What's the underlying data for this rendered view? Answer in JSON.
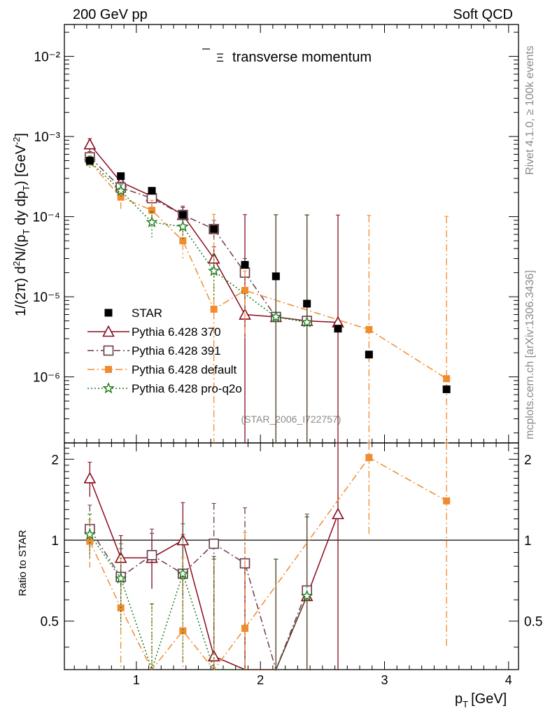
{
  "header": {
    "left": "200 GeV pp",
    "right": "Soft QCD",
    "side_top": "Rivet 4.1.0, ≥ 100k events",
    "side_bottom": "mcplots.cern.ch [arXiv:1306.3436]",
    "watermark": "(STAR_2006_I722757)"
  },
  "chart_data": {
    "type": "scatter",
    "title": "Ξ̄ transverse momentum",
    "title_symbol": "Ξ",
    "title_rest": "transverse momentum",
    "xlabel": "p_T [GeV]",
    "xlabel_main": "p",
    "xlabel_sub": "T",
    "xlabel_unit": "[GeV]",
    "ylabel": "1/(2π) d²N/(p_T dy dp_T) [GeV⁻²]",
    "ylabel_ratio": "Ratio to STAR",
    "xlim": [
      0.42,
      4.08
    ],
    "ylim": [
      1.5e-07,
      0.025
    ],
    "ratio_ylim": [
      0.33,
      2.3
    ],
    "x_ticks": [
      "1",
      "2",
      "3",
      "4"
    ],
    "y_ticks": [
      "10⁻⁶",
      "10⁻⁵",
      "10⁻⁴",
      "10⁻³",
      "10⁻²"
    ],
    "ratio_ticks": [
      "0.5",
      "1",
      "2"
    ],
    "ratio_ticks_right": [
      "0.5",
      "1",
      "2"
    ],
    "legend": [
      "STAR",
      "Pythia 6.428 370",
      "Pythia 6.428 391",
      "Pythia 6.428 default",
      "Pythia 6.428 pro-q2o"
    ],
    "data": {
      "name": "STAR",
      "color": "#000000",
      "x": [
        0.625,
        0.875,
        1.125,
        1.375,
        1.625,
        1.875,
        2.125,
        2.375,
        2.625,
        2.875,
        3.5
      ],
      "y": [
        0.0005,
        0.00032,
        0.00021,
        0.000105,
        7e-05,
        2.5e-05,
        1.8e-05,
        8.2e-06,
        4e-06,
        1.9e-06,
        7e-07
      ]
    },
    "series": [
      {
        "name": "Pythia 6.428 370",
        "color": "#8b0a1f",
        "marker": "triangle-open",
        "dash": "",
        "x": [
          0.625,
          0.875,
          1.125,
          1.375,
          1.625,
          1.875,
          2.125,
          2.375,
          2.625
        ],
        "y": [
          0.0008,
          0.00027,
          0.00018,
          0.000105,
          3e-05,
          6e-06,
          5.6e-06,
          5e-06,
          4.8e-06
        ],
        "err": [
          0.00014,
          4e-05,
          3e-05,
          3e-05,
          1.2e-05,
          0.0001,
          0.0001,
          0.0001,
          0.0001
        ],
        "ratio": [
          1.7,
          0.86,
          0.86,
          1.0,
          0.37,
          0.25,
          0.25,
          0.62,
          1.25
        ],
        "ratio_err": [
          0.25,
          0.18,
          0.2,
          0.38,
          0.5,
          0.6,
          0.6,
          0.6,
          1.1
        ]
      },
      {
        "name": "Pythia 6.428 391",
        "color": "#6b3a4a",
        "marker": "square-open",
        "dash": "9,4,2,4",
        "x": [
          0.625,
          0.875,
          1.125,
          1.375,
          1.625,
          1.875,
          2.125,
          2.375
        ],
        "y": [
          0.00055,
          0.00023,
          0.00017,
          0.000105,
          7e-05,
          2e-05,
          5.6e-06,
          5e-06
        ],
        "err": [
          0.0001,
          4e-05,
          4e-05,
          2.5e-05,
          2e-05,
          1e-05,
          0.0001,
          0.0001
        ],
        "ratio": [
          1.1,
          0.73,
          0.88,
          0.75,
          0.97,
          0.82,
          0.25,
          0.65
        ],
        "ratio_err": [
          0.25,
          0.2,
          0.22,
          0.3,
          0.4,
          0.5,
          0.6,
          0.6
        ]
      },
      {
        "name": "Pythia 6.428 default",
        "color": "#f08b2e",
        "marker": "square-filled",
        "dash": "10,4,2,4",
        "x": [
          0.625,
          0.875,
          1.125,
          1.375,
          1.625,
          1.875,
          2.875,
          3.5
        ],
        "y": [
          0.00048,
          0.000175,
          0.00012,
          5e-05,
          7e-06,
          1.2e-05,
          3.9e-06,
          9.5e-07
        ],
        "err": [
          8e-05,
          5e-05,
          4e-05,
          2e-05,
          0.0001,
          9e-06,
          0.0001,
          0.0001
        ],
        "ratio": [
          0.99,
          0.56,
          0.28,
          0.46,
          0.25,
          0.47,
          2.03,
          1.4
        ],
        "ratio_err": [
          0.2,
          0.3,
          0.3,
          0.4,
          0.6,
          0.6,
          1.0,
          1.0
        ]
      },
      {
        "name": "Pythia 6.428 pro-q2o",
        "color": "#1a7a1a",
        "marker": "star",
        "dash": "2,3",
        "x": [
          0.625,
          0.875,
          1.125,
          1.375,
          1.625,
          2.125,
          2.375
        ],
        "y": [
          0.00049,
          0.00021,
          8.5e-05,
          7.5e-05,
          2.1e-05,
          5.6e-06,
          4.8e-06
        ],
        "err": [
          8e-05,
          4e-05,
          3e-05,
          2.5e-05,
          1.2e-05,
          0.0001,
          0.0001
        ],
        "ratio": [
          1.05,
          0.72,
          0.28,
          0.75,
          0.25,
          0.25,
          0.62
        ],
        "ratio_err": [
          0.2,
          0.25,
          0.3,
          0.4,
          0.6,
          0.6,
          0.6
        ]
      }
    ]
  }
}
